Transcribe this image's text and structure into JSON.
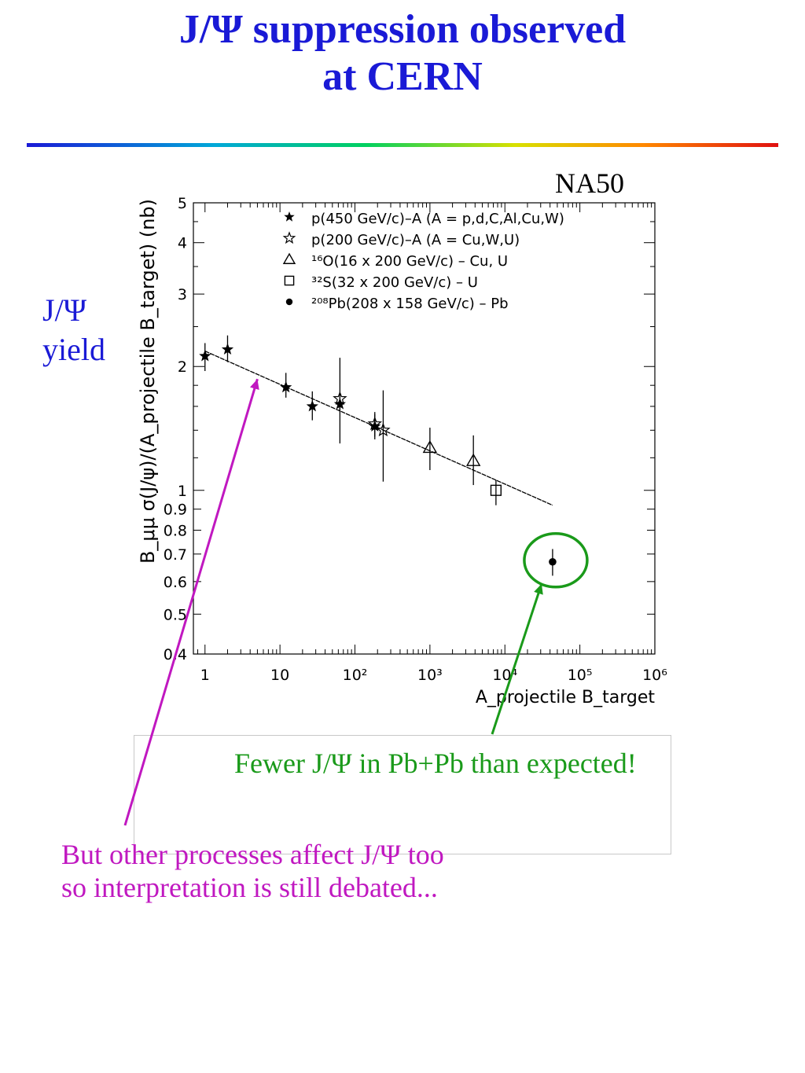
{
  "slide": {
    "title_line1": "J/Ψ suppression observed",
    "title_line2": "at CERN",
    "side_label_line1": "J/Ψ",
    "side_label_line2": "yield",
    "experiment": "NA50",
    "note_green": "Fewer J/Ψ in Pb+Pb than expected!",
    "note_magenta_line1": "But other processes affect J/Ψ too",
    "note_magenta_line2": "so interpretation is still debated...",
    "colors": {
      "title": "#1a1ad6",
      "green": "#1a9a1a",
      "magenta": "#c018c0"
    }
  },
  "chart_data": {
    "type": "scatter",
    "xscale": "log",
    "yscale": "log",
    "xlim": [
      0.7,
      1000000
    ],
    "ylim": [
      0.4,
      5
    ],
    "ylabel": "B_μμ σ(J/ψ)/(A_projectile B_target) (nb)",
    "xlabel": "A_projectile B_target",
    "x_ticklabels": [
      "1",
      "10",
      "10²",
      "10³",
      "10⁴",
      "10⁵",
      "10⁶"
    ],
    "y_ticklabels": [
      "0.4",
      "0.5",
      "0.6",
      "0.7",
      "0.8",
      "0.9",
      "1",
      "2",
      "3",
      "4",
      "5"
    ],
    "legend_position": "top",
    "series": [
      {
        "name": "p(450 GeV/c)–A (A = p,d,C,Al,Cu,W)",
        "marker": "filled-star",
        "points": [
          {
            "x": 1,
            "y": 2.12,
            "lo": 1.95,
            "hi": 2.28
          },
          {
            "x": 2,
            "y": 2.2,
            "lo": 2.05,
            "hi": 2.38
          },
          {
            "x": 12,
            "y": 1.78,
            "lo": 1.68,
            "hi": 1.93
          },
          {
            "x": 27,
            "y": 1.6,
            "lo": 1.48,
            "hi": 1.74
          },
          {
            "x": 63,
            "y": 1.62,
            "lo": 1.56,
            "hi": 1.68
          },
          {
            "x": 184,
            "y": 1.43,
            "lo": 1.33,
            "hi": 1.53
          }
        ]
      },
      {
        "name": "p(200 GeV/c)–A (A = Cu,W,U)",
        "marker": "open-star",
        "points": [
          {
            "x": 63,
            "y": 1.67,
            "lo": 1.3,
            "hi": 2.1
          },
          {
            "x": 184,
            "y": 1.45,
            "lo": 1.35,
            "hi": 1.55
          },
          {
            "x": 238,
            "y": 1.4,
            "lo": 1.05,
            "hi": 1.75
          }
        ]
      },
      {
        "name": "¹⁶O(16 x 200 GeV/c) – Cu, U",
        "marker": "open-triangle",
        "points": [
          {
            "x": 1000,
            "y": 1.27,
            "lo": 1.12,
            "hi": 1.42
          },
          {
            "x": 3800,
            "y": 1.18,
            "lo": 1.03,
            "hi": 1.36
          }
        ]
      },
      {
        "name": "³²S(32 x 200 GeV/c) – U",
        "marker": "open-square",
        "points": [
          {
            "x": 7600,
            "y": 1.0,
            "lo": 0.92,
            "hi": 1.06
          }
        ]
      },
      {
        "name": "²⁰⁸Pb(208 x 158 GeV/c) – Pb",
        "marker": "filled-circle",
        "points": [
          {
            "x": 43264,
            "y": 0.67,
            "lo": 0.62,
            "hi": 0.72
          }
        ]
      }
    ],
    "fit_line": {
      "x": [
        1,
        43264
      ],
      "y": [
        2.18,
        0.92
      ]
    },
    "annotations": [
      {
        "text": "Fewer J/Ψ in Pb+Pb than expected!",
        "points_to": "Pb-Pb point (circled)"
      },
      {
        "text": "But other processes affect J/Ψ too so interpretation is still debated...",
        "points_to": "fit line"
      }
    ]
  }
}
